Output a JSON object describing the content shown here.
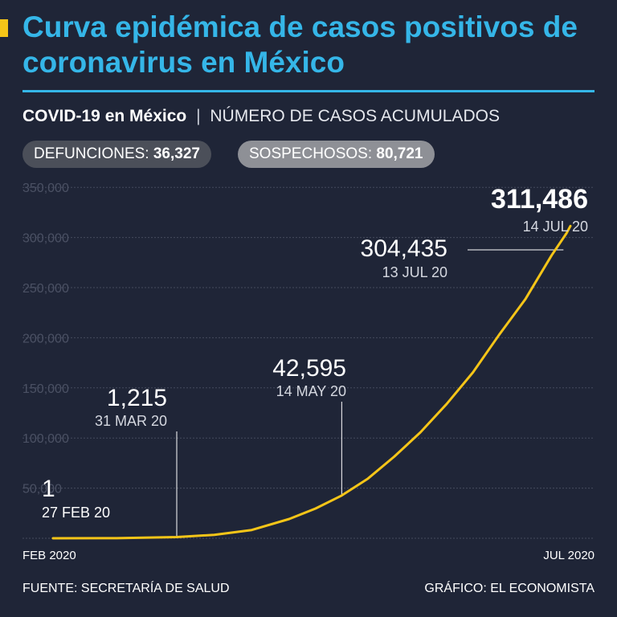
{
  "header": {
    "title": "Curva epidémica de casos positivos de coronavirus en México",
    "subtitle_bold": "COVID-19 en México",
    "subtitle_sep": "|",
    "subtitle_rest": "NÚMERO DE CASOS ACUMULADOS"
  },
  "pills": {
    "deaths_label": "DEFUNCIONES:",
    "deaths_value": "36,327",
    "suspected_label": "SOSPECHOSOS:",
    "suspected_value": "80,721"
  },
  "footer": {
    "source": "FUENTE: SECRETARÍA DE SALUD",
    "credit": "GRÁFICO: EL ECONOMISTA"
  },
  "colors": {
    "background": "#1f2537",
    "title": "#35b6e8",
    "line": "#f5c518",
    "grid": "#454b5e",
    "tick": "#4b5164"
  },
  "chart_data": {
    "type": "line",
    "title": "",
    "ylabel": "",
    "xlabel": "",
    "ylim": [
      0,
      350000
    ],
    "yticks": [
      50000,
      100000,
      150000,
      200000,
      250000,
      300000,
      350000
    ],
    "ytick_labels": [
      "50,000",
      "100,000",
      "150,000",
      "200,000",
      "250,000",
      "300,000",
      "350,000"
    ],
    "xlim": [
      "2020-02-27",
      "2020-07-14"
    ],
    "x_axis_labels": [
      "FEB 2020",
      "JUL 2020"
    ],
    "grid": true,
    "series": [
      {
        "x": [
          "2020-02-27",
          "2020-03-15",
          "2020-03-31",
          "2020-04-10",
          "2020-04-20",
          "2020-04-30",
          "2020-05-07",
          "2020-05-14",
          "2020-05-21",
          "2020-05-28",
          "2020-06-04",
          "2020-06-11",
          "2020-06-18",
          "2020-06-25",
          "2020-07-02",
          "2020-07-09",
          "2020-07-13",
          "2020-07-14"
        ],
        "y": [
          1,
          80,
          1215,
          3441,
          8261,
          19224,
          29616,
          42595,
          59567,
          81400,
          105680,
          133974,
          165455,
          202951,
          238511,
          282283,
          304435,
          311486
        ]
      }
    ],
    "annotations": [
      {
        "value": "1",
        "date_label": "27 FEB 20",
        "x": "2020-02-27",
        "y": 1
      },
      {
        "value": "1,215",
        "date_label": "31 MAR 20",
        "x": "2020-03-31",
        "y": 1215
      },
      {
        "value": "42,595",
        "date_label": "14 MAY 20",
        "x": "2020-05-14",
        "y": 42595
      },
      {
        "value": "304,435",
        "date_label": "13 JUL 20",
        "x": "2020-07-13",
        "y": 304435
      },
      {
        "value": "311,486",
        "date_label": "14 JUL 20",
        "x": "2020-07-14",
        "y": 311486
      }
    ]
  }
}
